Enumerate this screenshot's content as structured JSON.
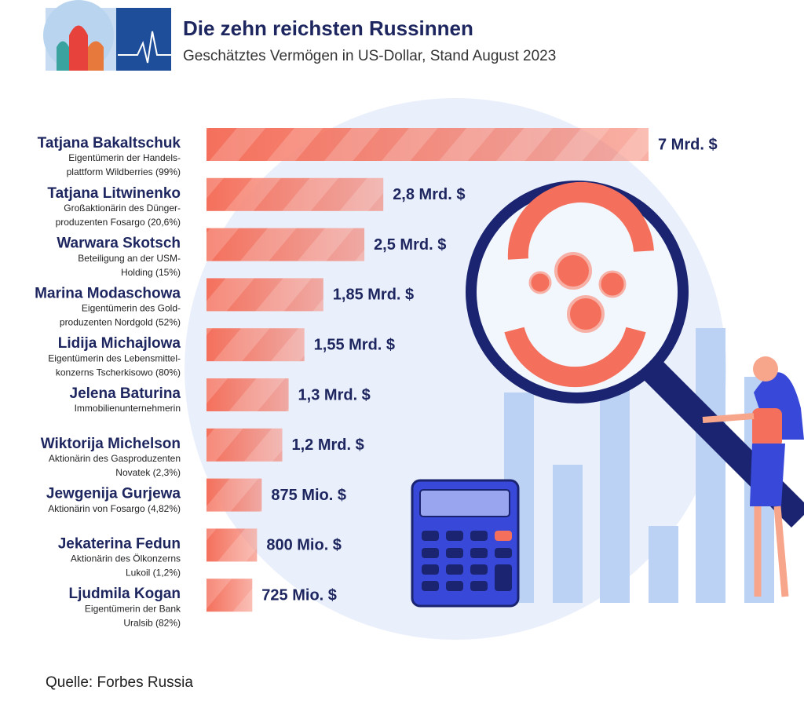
{
  "chart_data": {
    "type": "bar",
    "orientation": "horizontal",
    "title": "Die zehn reichsten Russinnen",
    "subtitle": "Geschätztes Vermögen in US-Dollar, Stand August 2023",
    "source": "Quelle: Forbes Russia",
    "color": "#f4705c",
    "categories": [
      "Tatjana Bakaltschuk",
      "Tatjana Litwinenko",
      "Warwara Skotsch",
      "Marina Modaschowa",
      "Lidija Michajlowa",
      "Jelena Baturina",
      "Wiktorija Michelson",
      "Jewgenija Gurjewa",
      "Jekaterina Fedun",
      "Ljudmila Kogan"
    ],
    "descriptions": [
      [
        "Eigentümerin der Handels-",
        "plattform Wildberries (99%)"
      ],
      [
        "Großaktionärin des Dünger-",
        "produzenten Fosargo (20,6%)"
      ],
      [
        "Beteiligung an der USM-",
        "Holding (15%)"
      ],
      [
        "Eigentümerin des Gold-",
        "produzenten Nordgold (52%)"
      ],
      [
        "Eigentümerin des Lebensmittel-",
        "konzerns Tscherkisowo (80%)"
      ],
      [
        "Immobilienunternehmerin"
      ],
      [
        "Aktionärin des Gasproduzenten",
        "Novatek (2,3%)"
      ],
      [
        "Aktionärin von Fosargo (4,82%)"
      ],
      [
        "Aktionärin des Ölkonzerns",
        "Lukoil (1,2%)"
      ],
      [
        "Eigentümerin der Bank",
        "Uralsib (82%)"
      ]
    ],
    "values": [
      7000000000,
      2800000000,
      2500000000,
      1850000000,
      1550000000,
      1300000000,
      1200000000,
      875000000,
      800000000,
      725000000
    ],
    "value_labels": [
      "7 Mrd. $",
      "2,8 Mrd. $",
      "2,5 Mrd. $",
      "1,85 Mrd. $",
      "1,55 Mrd. $",
      "1,3 Mrd. $",
      "1,2 Mrd. $",
      "875 Mio. $",
      "800 Mio. $",
      "725 Mio. $"
    ]
  }
}
